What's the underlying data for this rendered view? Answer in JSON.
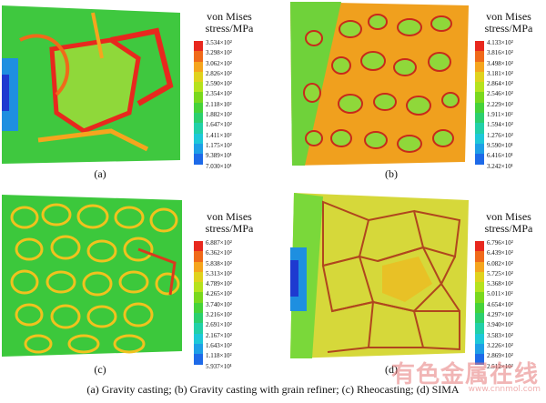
{
  "legend_title_line1": "von Mises",
  "legend_title_line2": "stress/MPa",
  "colorbar_colors": [
    "#e8281e",
    "#f06a1a",
    "#f5a51e",
    "#e0d21e",
    "#b6e21e",
    "#7ad81e",
    "#46d23a",
    "#2ccf6e",
    "#22d0a8",
    "#1ec8d8",
    "#1e9fe6",
    "#1e6ae8",
    "#1e32d6"
  ],
  "panels": [
    {
      "label": "(a)",
      "ticks": [
        "3.534×10²",
        "3.298×10²",
        "3.062×10²",
        "2.826×10²",
        "2.590×10²",
        "2.354×10²",
        "2.118×10²",
        "1.882×10²",
        "1.647×10²",
        "1.411×10²",
        "1.175×10²",
        "9.389×10¹",
        "7.030×10¹"
      ]
    },
    {
      "label": "(b)",
      "ticks": [
        "4.133×10²",
        "3.816×10²",
        "3.498×10²",
        "3.181×10²",
        "2.864×10²",
        "2.546×10²",
        "2.229×10²",
        "1.911×10²",
        "1.594×10²",
        "1.276×10²",
        "9.590×10¹",
        "6.416×10¹",
        "3.242×10¹"
      ]
    },
    {
      "label": "(c)",
      "ticks": [
        "6.887×10²",
        "6.362×10²",
        "5.838×10²",
        "5.313×10²",
        "4.789×10²",
        "4.265×10²",
        "3.740×10²",
        "3.216×10²",
        "2.691×10²",
        "2.167×10²",
        "1.643×10²",
        "1.118×10²",
        "5.937×10¹"
      ]
    },
    {
      "label": "(d)",
      "ticks": [
        "6.796×10²",
        "6.439×10²",
        "6.082×10²",
        "5.725×10²",
        "5.368×10²",
        "5.011×10²",
        "4.654×10²",
        "4.297×10²",
        "3.940×10²",
        "3.583×10²",
        "3.226×10²",
        "2.869×10²",
        "2.512×10²"
      ]
    }
  ],
  "caption": "(a) Gravity casting; (b) Gravity casting with grain refiner; (c) Rheocasting; (d) SIMA",
  "watermark": "有色金属在线",
  "watermark_sub": "www.cnnmol.com"
}
